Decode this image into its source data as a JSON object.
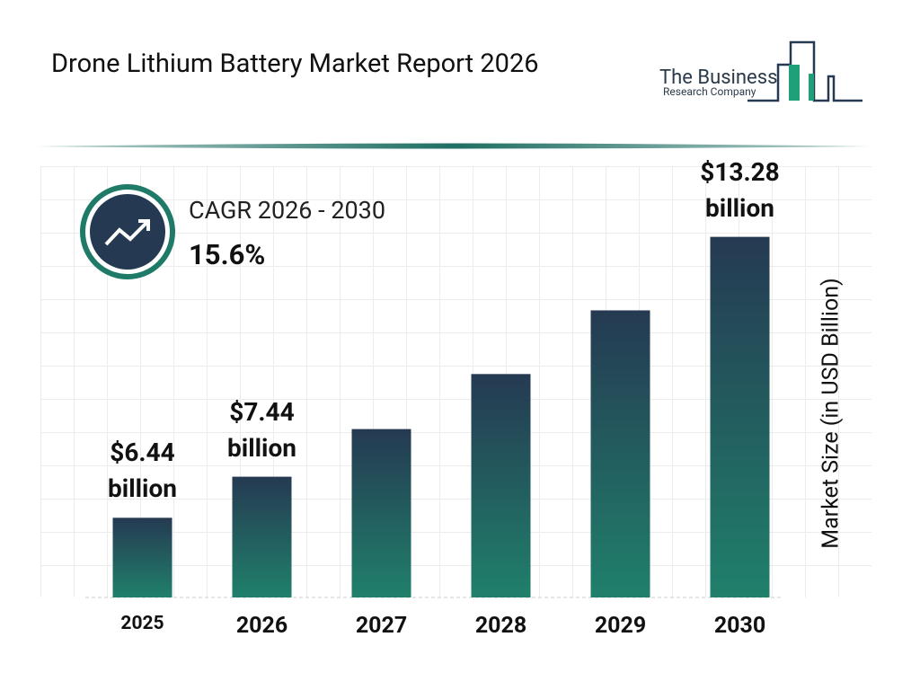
{
  "chart_data": {
    "type": "bar",
    "title": "Drone Lithium Battery Market Report 2026",
    "cagr_label": "CAGR 2026 - 2030",
    "cagr_value": "15.6%",
    "y_label": "Market Size (in USD Billion)",
    "categories": [
      "2025",
      "2026",
      "2027",
      "2028",
      "2029",
      "2030"
    ],
    "values": [
      6.44,
      7.44,
      8.6,
      9.94,
      11.49,
      13.28
    ],
    "value_labels": [
      "$6.44 billion",
      "$7.44 billion",
      null,
      null,
      null,
      "$13.28 billion"
    ],
    "colors": {
      "top": "#253a52",
      "bottom": "#20806b"
    },
    "ylim": [
      4.5,
      15
    ]
  },
  "logo": {
    "name": "The Business",
    "subtitle": "Research Company"
  }
}
